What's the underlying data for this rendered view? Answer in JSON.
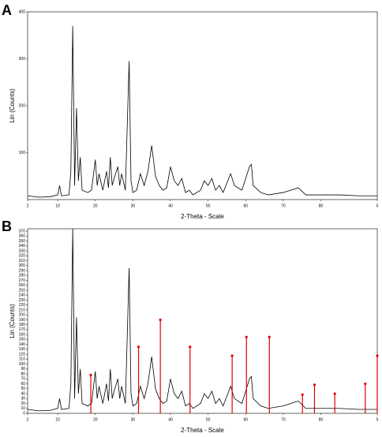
{
  "chart_data": [
    {
      "type": "line",
      "panel": "A",
      "ylabel": "Lin (Counts)",
      "xlabel": "2-Theta - Scale",
      "xlim": [
        2,
        95
      ],
      "xticks": [
        2,
        10,
        20,
        30,
        40,
        50,
        60,
        70,
        80,
        {
          "value": 95,
          "label": "5"
        }
      ],
      "ylim": [
        0,
        400
      ],
      "yticks": [
        100,
        200,
        300,
        400
      ],
      "x": [
        2,
        5,
        8,
        10,
        10.5,
        11,
        13,
        13.5,
        14,
        14.5,
        15,
        15.5,
        16,
        16.5,
        18,
        19,
        20,
        20.5,
        21,
        22,
        23,
        23.5,
        24,
        24.5,
        25,
        26,
        26.5,
        27,
        28,
        29,
        29.5,
        30,
        31,
        32,
        33,
        34,
        35,
        36,
        37,
        38,
        39,
        40,
        41,
        42,
        43,
        44,
        45,
        46,
        48,
        49,
        50,
        51,
        52,
        53,
        54,
        56,
        57,
        59,
        61,
        61.5,
        62,
        64,
        66,
        70,
        72,
        74,
        76,
        80,
        85,
        90,
        95
      ],
      "series": [
        {
          "color": "#000000",
          "values": [
            8,
            5,
            6,
            10,
            30,
            8,
            10,
            60,
            370,
            30,
            195,
            40,
            90,
            20,
            15,
            20,
            85,
            30,
            55,
            20,
            60,
            25,
            90,
            30,
            45,
            70,
            30,
            55,
            20,
            295,
            40,
            15,
            20,
            55,
            30,
            60,
            115,
            50,
            30,
            20,
            25,
            70,
            40,
            30,
            45,
            15,
            20,
            10,
            20,
            40,
            30,
            45,
            20,
            30,
            15,
            55,
            30,
            20,
            70,
            75,
            30,
            15,
            10,
            15,
            20,
            25,
            10,
            10,
            10,
            8,
            8
          ]
        }
      ]
    },
    {
      "type": "line",
      "panel": "B",
      "ylabel": "Lin (Counts)",
      "xlabel": "2-Theta - Scale",
      "xlim": [
        2,
        95
      ],
      "xticks": [
        2,
        10,
        20,
        30,
        40,
        50,
        60,
        70,
        80,
        {
          "value": 95,
          "label": "5"
        }
      ],
      "ylim": [
        0,
        375
      ],
      "yticks": [
        0,
        10,
        20,
        30,
        40,
        50,
        60,
        70,
        80,
        90,
        100,
        110,
        120,
        130,
        140,
        150,
        160,
        170,
        180,
        190,
        200,
        210,
        220,
        230,
        240,
        250,
        260,
        270,
        280,
        290,
        300,
        310,
        320,
        330,
        340,
        350,
        360,
        370
      ],
      "x": [
        2,
        5,
        8,
        10,
        10.5,
        11,
        13,
        13.5,
        14,
        14.5,
        15,
        15.5,
        16,
        16.5,
        18,
        19,
        20,
        20.5,
        21,
        22,
        23,
        23.5,
        24,
        24.5,
        25,
        26,
        26.5,
        27,
        28,
        29,
        29.5,
        30,
        31,
        32,
        33,
        34,
        35,
        36,
        37,
        38,
        39,
        40,
        41,
        42,
        43,
        44,
        45,
        46,
        48,
        49,
        50,
        51,
        52,
        53,
        54,
        56,
        57,
        59,
        61,
        61.5,
        62,
        64,
        66,
        70,
        72,
        74,
        76,
        80,
        85,
        90,
        95
      ],
      "series": [
        {
          "color": "#000000",
          "values": [
            8,
            5,
            6,
            10,
            30,
            8,
            10,
            60,
            375,
            30,
            195,
            40,
            90,
            20,
            15,
            20,
            85,
            30,
            55,
            20,
            60,
            25,
            90,
            30,
            45,
            70,
            30,
            55,
            20,
            295,
            40,
            15,
            20,
            55,
            30,
            60,
            115,
            50,
            30,
            20,
            25,
            70,
            40,
            30,
            45,
            15,
            20,
            10,
            20,
            40,
            30,
            45,
            20,
            30,
            15,
            55,
            30,
            20,
            70,
            75,
            30,
            15,
            10,
            15,
            20,
            25,
            10,
            10,
            10,
            8,
            8
          ]
        }
      ],
      "sticks": {
        "color": "#e00000",
        "x": [
          18.8,
          31.5,
          37.3,
          45.2,
          56.4,
          60.2,
          66.3,
          75.1,
          78.3,
          83.7,
          91.8,
          95
        ],
        "values": [
          78,
          135,
          190,
          135,
          117,
          155,
          155,
          38,
          58,
          40,
          60,
          117
        ]
      }
    }
  ]
}
